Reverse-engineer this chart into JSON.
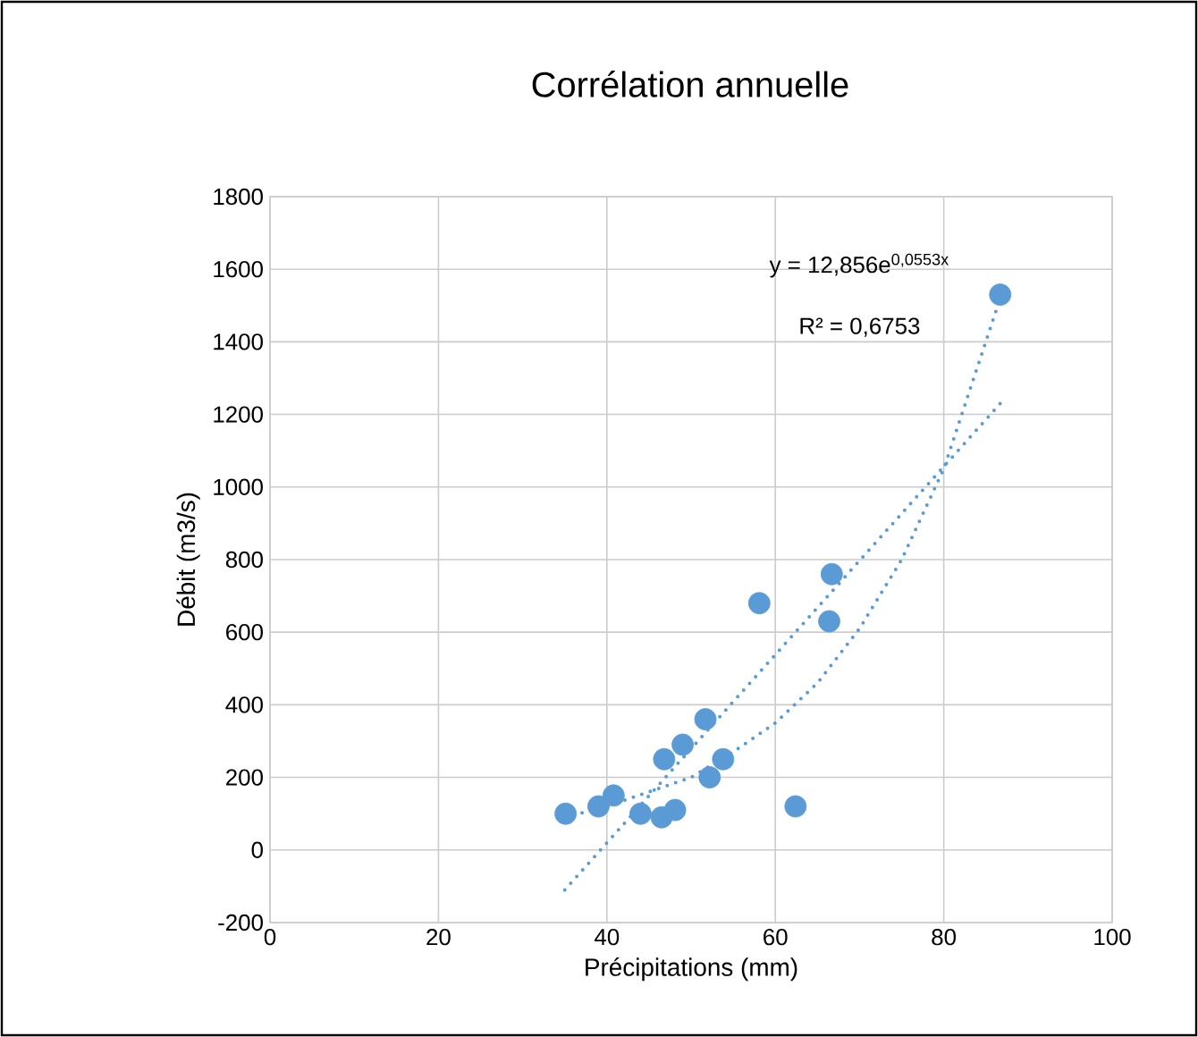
{
  "chart_data": {
    "type": "scatter",
    "title": "Corrélation annuelle",
    "xlabel": "Précipitations (mm)",
    "ylabel": "Débit (m3/s)",
    "xlim": [
      0,
      100
    ],
    "xticks": [
      0,
      20,
      40,
      60,
      80,
      100
    ],
    "ylim": [
      -200,
      1800
    ],
    "yticks": [
      -200,
      0,
      200,
      400,
      600,
      800,
      1000,
      1200,
      1400,
      1600,
      1800
    ],
    "grid": true,
    "marker": "circle",
    "annotations": [
      "y = 12,856e$^{0,0553x}$",
      "R² = 0,6753"
    ],
    "series": [
      {
        "color": "#5b9bd5",
        "x": [
          35.1,
          39.0,
          40.8,
          44.0,
          46.5,
          46.8,
          48.1,
          49.0,
          51.7,
          52.2,
          53.8,
          58.1,
          62.4,
          66.4,
          66.7,
          86.7
        ],
        "values": [
          100,
          120,
          150,
          100,
          90,
          250,
          110,
          290,
          360,
          200,
          250,
          680,
          120,
          630,
          760,
          1530
        ]
      },
      {
        "type": "line",
        "color": "#5b9bd5",
        "marker": "none",
        "line_style": "dotted",
        "x": [
          35,
          86.7
        ],
        "values": [
          -110,
          1230
        ]
      },
      {
        "type": "line",
        "color": "#5b9bd5",
        "marker": "none",
        "line_style": "dotted",
        "x": [
          35,
          40,
          45,
          50,
          55,
          60,
          65,
          70,
          75,
          80,
          86.7
        ],
        "values": [
          90,
          120,
          160,
          200,
          270,
          350,
          460,
          610,
          800,
          1050,
          1520
        ]
      }
    ]
  }
}
